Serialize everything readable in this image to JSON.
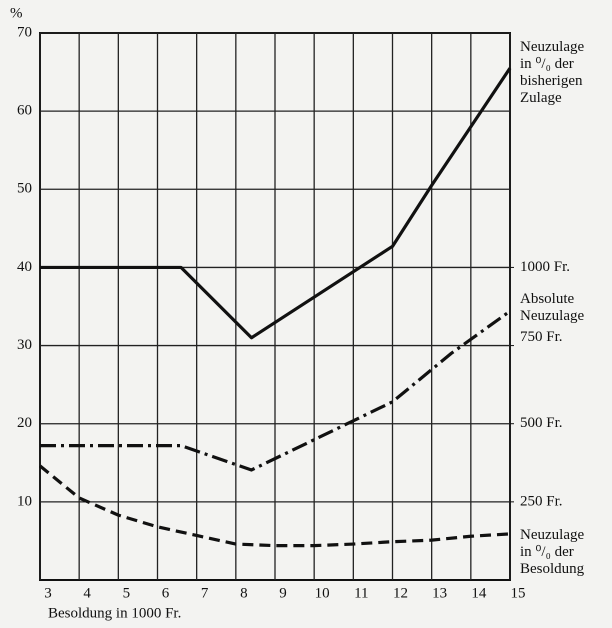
{
  "chart_data": {
    "type": "line",
    "y_label": "%",
    "x_label": "Besoldung in 1000 Fr.",
    "xlim": [
      3,
      15
    ],
    "xticks": [
      3,
      4,
      5,
      6,
      7,
      8,
      9,
      10,
      11,
      12,
      13,
      14,
      15
    ],
    "ylim": [
      0,
      70
    ],
    "yticks": [
      10,
      20,
      30,
      40,
      50,
      60,
      70
    ],
    "y2lim": [
      0,
      1750
    ],
    "y2ticks": [
      {
        "value": 250,
        "label": "250 Fr."
      },
      {
        "value": 500,
        "label": "500 Fr."
      },
      {
        "value": 750,
        "label": "750 Fr."
      },
      {
        "value": 1000,
        "label": "1000 Fr."
      }
    ],
    "grid": true,
    "series": [
      {
        "name": "Neuzulage\nin ⁰/₀ der\nbisherigen\nZulage",
        "color": "#111111",
        "style": "solid",
        "x": [
          3,
          6.6,
          8.4,
          12,
          13,
          14,
          15
        ],
        "values": [
          40,
          40,
          31,
          42.7,
          50.5,
          58,
          65.5
        ]
      },
      {
        "name": "Absolute\nNeuzulage",
        "color": "#111111",
        "style": "dashdot",
        "axis": "y2",
        "x": [
          3,
          6.6,
          8.4,
          12,
          13.5,
          15
        ],
        "values": [
          430,
          430,
          352,
          570,
          725,
          860
        ]
      },
      {
        "name": "Neuzulage\nin ⁰/₀ der\nBesoldung",
        "color": "#111111",
        "style": "dashed",
        "x": [
          3,
          4,
          5,
          6,
          7,
          8,
          9,
          10,
          11,
          12,
          13,
          14,
          15
        ],
        "values": [
          14.6,
          10.5,
          8.3,
          6.8,
          5.7,
          4.6,
          4.4,
          4.4,
          4.6,
          4.9,
          5.1,
          5.6,
          5.9
        ]
      }
    ]
  }
}
